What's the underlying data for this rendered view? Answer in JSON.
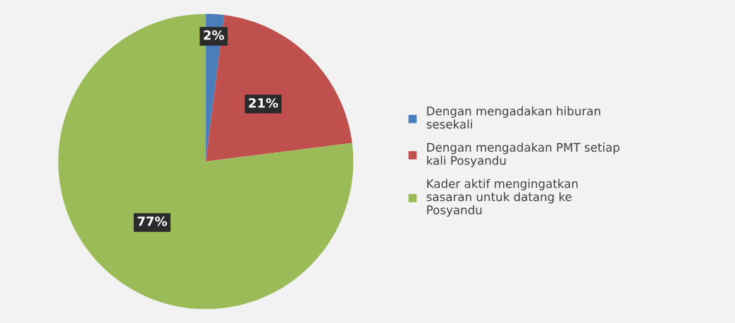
{
  "chart_data": {
    "type": "pie",
    "categories": [
      "Dengan mengadakan hiburan sesekali",
      "Dengan mengadakan PMT setiap kali Posyandu",
      "Kader aktif mengingatkan sasaran untuk datang ke Posyandu"
    ],
    "values": [
      2,
      21,
      77
    ],
    "colors": [
      "#4a7ebb",
      "#c0504d",
      "#9bbb59"
    ],
    "value_labels": [
      "2%",
      "21%",
      "77%"
    ],
    "legend": "right"
  }
}
